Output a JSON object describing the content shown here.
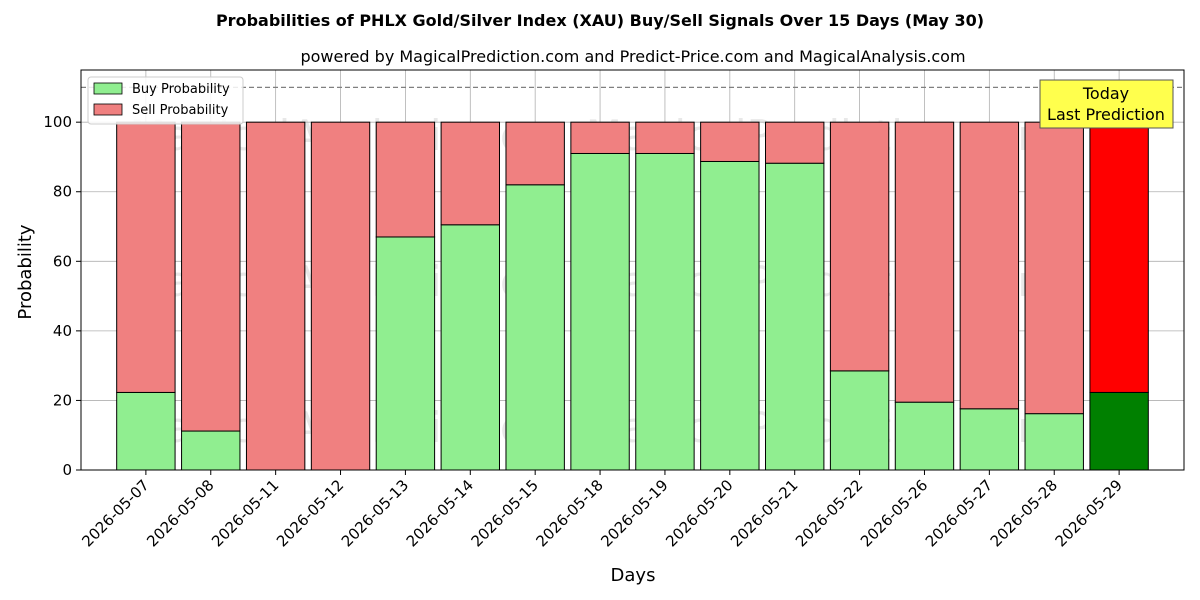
{
  "chart_data": {
    "type": "bar",
    "stacked": true,
    "title": "Probabilities of PHLX Gold/Silver Index (XAU) Buy/Sell Signals Over 15 Days (May 30)",
    "subtitle": "powered by MagicalPrediction.com and Predict-Price.com and MagicalAnalysis.com",
    "xlabel": "Days",
    "ylabel": "Probability",
    "ylim": [
      0,
      115
    ],
    "yticks": [
      0,
      20,
      40,
      60,
      80,
      100
    ],
    "grid": true,
    "legend_position": "upper-left",
    "reference_line": 110,
    "categories": [
      "2026-05-07",
      "2026-05-08",
      "2026-05-11",
      "2026-05-12",
      "2026-05-13",
      "2026-05-14",
      "2026-05-15",
      "2026-05-18",
      "2026-05-19",
      "2026-05-20",
      "2026-05-21",
      "2026-05-22",
      "2026-05-26",
      "2026-05-27",
      "2026-05-28",
      "2026-05-29"
    ],
    "series": [
      {
        "name": "Buy Probability",
        "color": "#90ee90",
        "highlight_color": "#008000",
        "values": [
          22.3,
          11.2,
          0,
          0,
          67,
          70.5,
          82,
          91,
          91,
          88.7,
          88.2,
          28.5,
          19.5,
          17.6,
          16.2,
          22.3
        ]
      },
      {
        "name": "Sell Probability",
        "color": "#f08080",
        "highlight_color": "#ff0000",
        "values": [
          77.7,
          88.8,
          100,
          100,
          33,
          29.5,
          18,
          9,
          9,
          11.3,
          11.8,
          71.5,
          80.5,
          82.4,
          83.8,
          77.7
        ]
      }
    ],
    "highlight_index": 15,
    "annotation": {
      "lines": [
        "Today",
        "Last Prediction"
      ],
      "color": "#ffff4d"
    },
    "watermarks": [
      "MagicalAnalysis.com",
      "MagicalPrediction.com"
    ]
  }
}
